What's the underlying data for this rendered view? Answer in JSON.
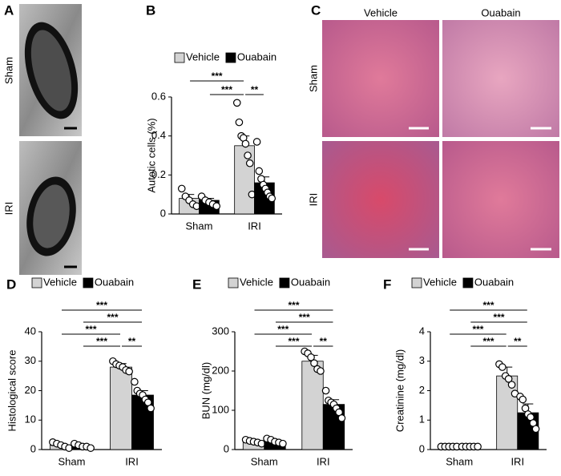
{
  "panel_labels": [
    "A",
    "B",
    "C",
    "D",
    "E",
    "F"
  ],
  "micrographs": {
    "A": {
      "row_labels": [
        "Sham",
        "IRI"
      ]
    },
    "C": {
      "column_labels": [
        "Vehicle",
        "Ouabain"
      ],
      "row_labels": [
        "Sham",
        "IRI"
      ]
    }
  },
  "chart_data": [
    {
      "type": "bar",
      "y_label": "Autotic cells (%)",
      "categories": [
        "Sham",
        "IRI"
      ],
      "ylim": [
        0,
        0.6
      ],
      "yticks": [
        0.0,
        0.2,
        0.4,
        0.6
      ],
      "series": [
        {
          "name": "Vehicle",
          "color": "#d3d3d3",
          "values": [
            0.08,
            0.35
          ],
          "errors": [
            0.02,
            0.05
          ],
          "points": [
            [
              0.13,
              0.09,
              0.07,
              0.05,
              0.04
            ],
            [
              0.57,
              0.47,
              0.4,
              0.39,
              0.36,
              0.3,
              0.26,
              0.1
            ]
          ]
        },
        {
          "name": "Ouabain",
          "color": "#000000",
          "values": [
            0.07,
            0.16
          ],
          "errors": [
            0.01,
            0.03
          ],
          "points": [
            [
              0.09,
              0.07,
              0.06,
              0.05,
              0.04
            ],
            [
              0.37,
              0.22,
              0.18,
              0.15,
              0.13,
              0.11,
              0.09,
              0.08
            ]
          ]
        }
      ],
      "brackets": [
        {
          "from": [
            0,
            1
          ],
          "to": [
            1,
            0
          ],
          "label": "***"
        },
        {
          "from": [
            1,
            0
          ],
          "to": [
            1,
            1
          ],
          "label": "**"
        },
        {
          "from": [
            0,
            0
          ],
          "to": [
            1,
            0
          ],
          "label": "***"
        }
      ]
    },
    {
      "type": "bar",
      "y_label": "Histological score",
      "categories": [
        "Sham",
        "IRI"
      ],
      "ylim": [
        0,
        40
      ],
      "yticks": [
        0,
        10,
        20,
        30,
        40
      ],
      "series": [
        {
          "name": "Vehicle",
          "color": "#d3d3d3",
          "values": [
            1.5,
            28
          ],
          "errors": [
            0.5,
            1.2
          ],
          "points": [
            [
              2.5,
              2,
              1.5,
              1,
              0.5
            ],
            [
              30,
              29,
              28.5,
              28,
              27,
              26.5
            ]
          ]
        },
        {
          "name": "Ouabain",
          "color": "#000000",
          "values": [
            1.2,
            18.5
          ],
          "errors": [
            0.4,
            1.5
          ],
          "points": [
            [
              2,
              1.5,
              1,
              1,
              0.5
            ],
            [
              23,
              20,
              19,
              18.5,
              17,
              16,
              14
            ]
          ]
        }
      ],
      "brackets": [
        {
          "from": [
            0,
            1
          ],
          "to": [
            1,
            0
          ],
          "label": "***"
        },
        {
          "from": [
            1,
            0
          ],
          "to": [
            1,
            1
          ],
          "label": "**"
        },
        {
          "from": [
            0,
            0
          ],
          "to": [
            1,
            0
          ],
          "label": "***"
        },
        {
          "from": [
            0,
            1
          ],
          "to": [
            1,
            1
          ],
          "label": "***"
        },
        {
          "from": [
            0,
            0
          ],
          "to": [
            1,
            1
          ],
          "label": "***"
        }
      ]
    },
    {
      "type": "bar",
      "y_label": "BUN (mg/dl)",
      "categories": [
        "Sham",
        "IRI"
      ],
      "ylim": [
        0,
        300
      ],
      "yticks": [
        0,
        100,
        200,
        300
      ],
      "series": [
        {
          "name": "Vehicle",
          "color": "#d3d3d3",
          "values": [
            20,
            225
          ],
          "errors": [
            3,
            15
          ],
          "points": [
            [
              25,
              22,
              20,
              18,
              15
            ],
            [
              250,
              245,
              235,
              220,
              205,
              200
            ]
          ]
        },
        {
          "name": "Ouabain",
          "color": "#000000",
          "values": [
            20,
            115
          ],
          "errors": [
            3,
            12
          ],
          "points": [
            [
              28,
              25,
              20,
              18,
              15
            ],
            [
              150,
              125,
              120,
              115,
              105,
              95,
              80
            ]
          ]
        }
      ],
      "brackets": [
        {
          "from": [
            0,
            1
          ],
          "to": [
            1,
            0
          ],
          "label": "***"
        },
        {
          "from": [
            1,
            0
          ],
          "to": [
            1,
            1
          ],
          "label": "**"
        },
        {
          "from": [
            0,
            0
          ],
          "to": [
            1,
            0
          ],
          "label": "***"
        },
        {
          "from": [
            0,
            1
          ],
          "to": [
            1,
            1
          ],
          "label": "***"
        },
        {
          "from": [
            0,
            0
          ],
          "to": [
            1,
            1
          ],
          "label": "***"
        }
      ]
    },
    {
      "type": "bar",
      "y_label": "Creatinine (mg/dl)",
      "categories": [
        "Sham",
        "IRI"
      ],
      "ylim": [
        0,
        4
      ],
      "yticks": [
        0,
        1,
        2,
        3,
        4
      ],
      "series": [
        {
          "name": "Vehicle",
          "color": "#d3d3d3",
          "values": [
            0.1,
            2.5
          ],
          "errors": [
            0.02,
            0.3
          ],
          "points": [
            [
              0.1,
              0.1,
              0.1,
              0.1,
              0.1
            ],
            [
              2.9,
              2.8,
              2.5,
              2.4,
              2.2,
              1.9
            ]
          ]
        },
        {
          "name": "Ouabain",
          "color": "#000000",
          "values": [
            0.1,
            1.25
          ],
          "errors": [
            0.02,
            0.3
          ],
          "points": [
            [
              0.1,
              0.1,
              0.1,
              0.1,
              0.1
            ],
            [
              1.8,
              1.7,
              1.4,
              1.2,
              1.1,
              0.9,
              0.7
            ]
          ]
        }
      ],
      "brackets": [
        {
          "from": [
            0,
            1
          ],
          "to": [
            1,
            0
          ],
          "label": "***"
        },
        {
          "from": [
            1,
            0
          ],
          "to": [
            1,
            1
          ],
          "label": "**"
        },
        {
          "from": [
            0,
            0
          ],
          "to": [
            1,
            0
          ],
          "label": "***"
        },
        {
          "from": [
            0,
            1
          ],
          "to": [
            1,
            1
          ],
          "label": "***"
        },
        {
          "from": [
            0,
            0
          ],
          "to": [
            1,
            1
          ],
          "label": "***"
        }
      ]
    }
  ]
}
